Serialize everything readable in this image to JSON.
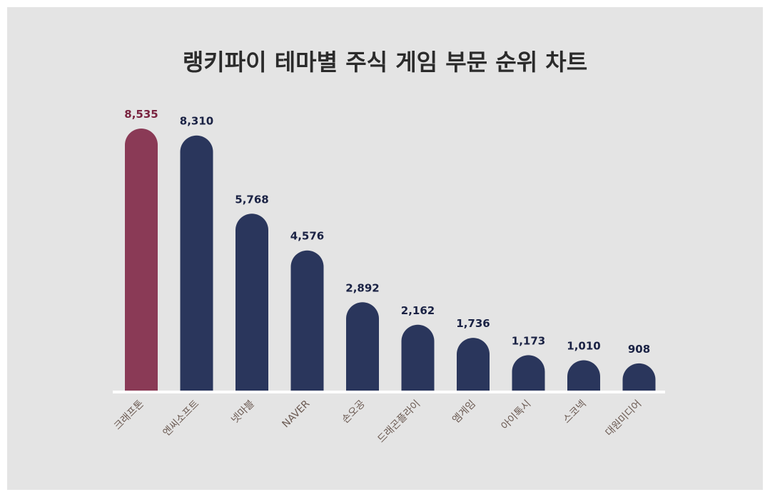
{
  "title": "랭키파이 테마별 주식 게임 부문 순위 차트",
  "colors": {
    "background": "#e4e4e4",
    "highlight_bar": "#8a3a56",
    "bar": "#2a365c",
    "highlight_value_label": "#7a2440",
    "value_label": "#1a2244",
    "category_label": "#6b5a52",
    "baseline": "#ffffff"
  },
  "chart_data": {
    "type": "bar",
    "title": "랭키파이 테마별 주식 게임 부문 순위 차트",
    "xlabel": "",
    "ylabel": "",
    "categories": [
      "크래프톤",
      "엔씨소프트",
      "넷마블",
      "NAVER",
      "손오공",
      "드래곤플라이",
      "엠게임",
      "아이톡시",
      "스코넥",
      "대원미디어"
    ],
    "values": [
      8535,
      8310,
      5768,
      4576,
      2892,
      2162,
      1736,
      1173,
      1010,
      908
    ],
    "value_labels": [
      "8,535",
      "8,310",
      "5,768",
      "4,576",
      "2,892",
      "2,162",
      "1,736",
      "1,173",
      "1,010",
      "908"
    ],
    "highlight_index": 0,
    "ylim": [
      0,
      8535
    ],
    "grid": false,
    "legend": "none"
  }
}
